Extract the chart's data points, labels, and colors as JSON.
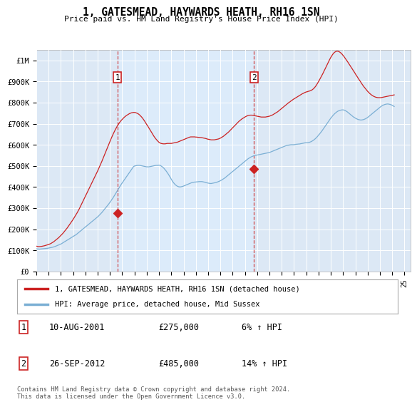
{
  "title": "1, GATESMEAD, HAYWARDS HEATH, RH16 1SN",
  "subtitle": "Price paid vs. HM Land Registry's House Price Index (HPI)",
  "ylabel_ticks": [
    "£0",
    "£100K",
    "£200K",
    "£300K",
    "£400K",
    "£500K",
    "£600K",
    "£700K",
    "£800K",
    "£900K",
    "£1M"
  ],
  "ytick_values": [
    0,
    100000,
    200000,
    300000,
    400000,
    500000,
    600000,
    700000,
    800000,
    900000,
    1000000
  ],
  "ylim": [
    0,
    1050000
  ],
  "xlim_start": 1995.0,
  "xlim_end": 2025.5,
  "background_color": "#ffffff",
  "plot_bg_color": "#dce8f5",
  "plot_bg_between": "#e8f0fa",
  "grid_color": "#ffffff",
  "line1_color": "#cc2222",
  "line2_color": "#7bafd4",
  "transaction1_date": 2001.6,
  "transaction1_price": 275000,
  "transaction2_date": 2012.73,
  "transaction2_price": 485000,
  "vline_color": "#cc2222",
  "legend_line1": "1, GATESMEAD, HAYWARDS HEATH, RH16 1SN (detached house)",
  "legend_line2": "HPI: Average price, detached house, Mid Sussex",
  "table_rows": [
    {
      "num": "1",
      "date": "10-AUG-2001",
      "price": "£275,000",
      "change": "6% ↑ HPI"
    },
    {
      "num": "2",
      "date": "26-SEP-2012",
      "price": "£485,000",
      "change": "14% ↑ HPI"
    }
  ],
  "footnote": "Contains HM Land Registry data © Crown copyright and database right 2024.\nThis data is licensed under the Open Government Licence v3.0.",
  "hpi_monthly": {
    "start_year": 1995,
    "start_month": 1,
    "prices": [
      108000,
      107000,
      106500,
      106000,
      106500,
      107000,
      107500,
      108000,
      108500,
      109000,
      109500,
      110000,
      111000,
      112000,
      113000,
      114000,
      115000,
      116500,
      118000,
      120000,
      122000,
      124000,
      126000,
      128000,
      130000,
      133000,
      136000,
      139000,
      142000,
      145000,
      148000,
      151000,
      154000,
      157000,
      160000,
      163000,
      166000,
      169000,
      172000,
      175000,
      179000,
      183000,
      187000,
      191000,
      195000,
      199000,
      203000,
      207000,
      211000,
      215000,
      219000,
      223000,
      227000,
      231000,
      235000,
      239000,
      243000,
      247000,
      251000,
      255000,
      259000,
      264000,
      269000,
      274000,
      279000,
      285000,
      291000,
      297000,
      303000,
      309000,
      315000,
      321000,
      328000,
      335000,
      342000,
      349000,
      357000,
      365000,
      373000,
      381000,
      389000,
      397000,
      405000,
      413000,
      420000,
      427000,
      434000,
      441000,
      448000,
      455000,
      462000,
      469000,
      476000,
      483000,
      490000,
      497000,
      500000,
      501000,
      502000,
      503000,
      503000,
      503000,
      502000,
      501000,
      500000,
      499000,
      498000,
      497000,
      496000,
      496000,
      496000,
      497000,
      498000,
      499000,
      500000,
      501000,
      502000,
      503000,
      503000,
      503000,
      504000,
      503000,
      500000,
      497000,
      493000,
      488000,
      482000,
      476000,
      469000,
      462000,
      454000,
      446000,
      437000,
      429000,
      422000,
      416000,
      411000,
      407000,
      404000,
      402000,
      401000,
      401000,
      402000,
      403000,
      405000,
      407000,
      409000,
      411000,
      413000,
      415000,
      417000,
      419000,
      421000,
      422000,
      423000,
      424000,
      424000,
      425000,
      425000,
      426000,
      426000,
      426000,
      426000,
      425000,
      424000,
      423000,
      421000,
      420000,
      419000,
      418000,
      417000,
      417000,
      418000,
      419000,
      420000,
      421000,
      422000,
      424000,
      426000,
      428000,
      430000,
      433000,
      436000,
      439000,
      442000,
      446000,
      450000,
      454000,
      458000,
      462000,
      466000,
      470000,
      474000,
      478000,
      482000,
      486000,
      490000,
      494000,
      498000,
      502000,
      506000,
      510000,
      514000,
      518000,
      522000,
      526000,
      530000,
      534000,
      537000,
      540000,
      543000,
      545000,
      547000,
      549000,
      550000,
      551000,
      552000,
      553000,
      554000,
      555000,
      556000,
      557000,
      558000,
      559000,
      560000,
      561000,
      562000,
      563000,
      564000,
      566000,
      568000,
      570000,
      572000,
      574000,
      576000,
      578000,
      580000,
      582000,
      584000,
      586000,
      588000,
      590000,
      592000,
      594000,
      596000,
      597000,
      598000,
      599000,
      600000,
      601000,
      601000,
      601000,
      601000,
      602000,
      603000,
      603000,
      604000,
      604000,
      605000,
      606000,
      607000,
      608000,
      609000,
      610000,
      610000,
      610000,
      611000,
      612000,
      614000,
      616000,
      619000,
      622000,
      626000,
      630000,
      635000,
      640000,
      646000,
      652000,
      658000,
      664000,
      671000,
      678000,
      685000,
      692000,
      699000,
      706000,
      713000,
      720000,
      727000,
      733000,
      739000,
      744000,
      749000,
      753000,
      757000,
      760000,
      762000,
      764000,
      765000,
      766000,
      766000,
      765000,
      763000,
      760000,
      757000,
      753000,
      749000,
      745000,
      741000,
      737000,
      733000,
      730000,
      727000,
      724000,
      722000,
      720000,
      719000,
      718000,
      718000,
      719000,
      720000,
      722000,
      724000,
      727000,
      730000,
      734000,
      738000,
      742000,
      746000,
      750000,
      754000,
      758000,
      762000,
      766000,
      770000,
      774000,
      778000,
      782000,
      785000,
      788000,
      790000,
      792000,
      793000,
      794000,
      794000,
      793000,
      792000,
      790000,
      788000,
      785000,
      782000
    ]
  },
  "property_monthly": {
    "start_year": 1995,
    "start_month": 1,
    "prices": [
      120000,
      119000,
      118000,
      118000,
      118500,
      119000,
      120000,
      121000,
      122000,
      123500,
      125000,
      126500,
      128000,
      130000,
      132000,
      135000,
      138000,
      141000,
      145000,
      149000,
      153000,
      157000,
      161000,
      166000,
      171000,
      176000,
      181000,
      187000,
      193000,
      199000,
      205000,
      212000,
      219000,
      226000,
      233000,
      240000,
      247000,
      255000,
      263000,
      271000,
      279000,
      288000,
      297000,
      307000,
      317000,
      327000,
      337000,
      347000,
      357000,
      367000,
      377000,
      387000,
      397000,
      407000,
      417000,
      427000,
      437000,
      447000,
      457000,
      467000,
      477000,
      488000,
      499000,
      510000,
      521000,
      533000,
      545000,
      557000,
      569000,
      581000,
      593000,
      605000,
      617000,
      628000,
      639000,
      650000,
      660000,
      670000,
      679000,
      688000,
      696000,
      703000,
      710000,
      716000,
      721000,
      726000,
      731000,
      735000,
      739000,
      742000,
      745000,
      748000,
      750000,
      752000,
      753000,
      754000,
      754000,
      753000,
      751000,
      749000,
      746000,
      742000,
      737000,
      732000,
      726000,
      719000,
      712000,
      704000,
      696000,
      689000,
      681000,
      673000,
      665000,
      657000,
      649000,
      641000,
      634000,
      628000,
      622000,
      617000,
      612000,
      609000,
      607000,
      606000,
      605000,
      605000,
      605000,
      606000,
      607000,
      607000,
      607000,
      607000,
      607000,
      608000,
      609000,
      610000,
      611000,
      612000,
      613000,
      615000,
      617000,
      619000,
      621000,
      623000,
      625000,
      627000,
      629000,
      631000,
      633000,
      635000,
      637000,
      638000,
      638000,
      638000,
      638000,
      638000,
      637000,
      637000,
      636000,
      636000,
      635000,
      635000,
      634000,
      633000,
      632000,
      631000,
      630000,
      628000,
      627000,
      626000,
      625000,
      624000,
      624000,
      624000,
      624000,
      625000,
      626000,
      627000,
      628000,
      630000,
      632000,
      635000,
      638000,
      641000,
      645000,
      649000,
      653000,
      657000,
      661000,
      666000,
      671000,
      676000,
      681000,
      686000,
      691000,
      696000,
      701000,
      706000,
      711000,
      715000,
      719000,
      723000,
      726000,
      729000,
      732000,
      735000,
      737000,
      739000,
      740000,
      741000,
      741000,
      741000,
      740000,
      739000,
      738000,
      737000,
      736000,
      735000,
      734000,
      733000,
      732000,
      732000,
      732000,
      732000,
      732000,
      733000,
      734000,
      735000,
      736000,
      738000,
      740000,
      742000,
      745000,
      748000,
      751000,
      754000,
      757000,
      761000,
      765000,
      769000,
      773000,
      777000,
      781000,
      785000,
      789000,
      793000,
      797000,
      801000,
      804000,
      808000,
      811000,
      815000,
      818000,
      821000,
      824000,
      827000,
      830000,
      833000,
      836000,
      839000,
      842000,
      844000,
      847000,
      849000,
      851000,
      852000,
      854000,
      855000,
      857000,
      859000,
      862000,
      866000,
      871000,
      877000,
      884000,
      892000,
      900000,
      909000,
      918000,
      927000,
      936000,
      946000,
      956000,
      966000,
      976000,
      986000,
      996000,
      1006000,
      1015000,
      1023000,
      1030000,
      1036000,
      1040000,
      1043000,
      1044000,
      1044000,
      1042000,
      1039000,
      1035000,
      1030000,
      1024000,
      1018000,
      1011000,
      1004000,
      997000,
      990000,
      982000,
      975000,
      967000,
      960000,
      952000,
      945000,
      937000,
      929000,
      922000,
      914000,
      907000,
      900000,
      892000,
      885000,
      878000,
      872000,
      866000,
      860000,
      854000,
      849000,
      844000,
      840000,
      836000,
      833000,
      830000,
      828000,
      826000,
      825000,
      824000,
      824000,
      824000,
      824000,
      825000,
      826000,
      827000,
      828000,
      829000,
      830000,
      831000,
      832000,
      833000,
      834000,
      835000,
      836000,
      837000
    ]
  }
}
